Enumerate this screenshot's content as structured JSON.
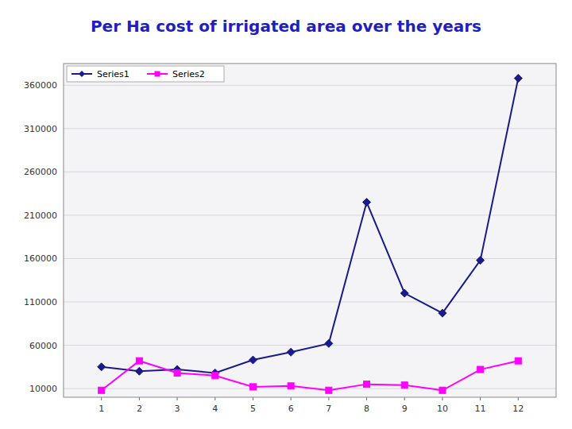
{
  "chart_data": {
    "type": "line",
    "title": "Per Ha cost of irrigated area over the years",
    "x": [
      1,
      2,
      3,
      4,
      5,
      6,
      7,
      8,
      9,
      10,
      11,
      12
    ],
    "series": [
      {
        "name": "Series1",
        "color": "#1a1a8c",
        "marker": "diamond",
        "values": [
          35000,
          30000,
          32000,
          28000,
          43000,
          52000,
          62000,
          225000,
          120000,
          97000,
          158000,
          368000
        ]
      },
      {
        "name": "Series2",
        "color": "#ff00ff",
        "marker": "square",
        "values": [
          8000,
          42000,
          28000,
          25000,
          12000,
          13000,
          8000,
          15000,
          14000,
          8000,
          32000,
          42000
        ]
      }
    ],
    "xlim": [
      0,
      13
    ],
    "xticks": [
      1,
      2,
      3,
      4,
      5,
      6,
      7,
      8,
      9,
      10,
      11,
      12
    ],
    "ylim": [
      0,
      385000
    ],
    "yticks": [
      10000,
      60000,
      110000,
      160000,
      210000,
      260000,
      310000,
      360000
    ],
    "grid": true,
    "legend": "upper left"
  }
}
